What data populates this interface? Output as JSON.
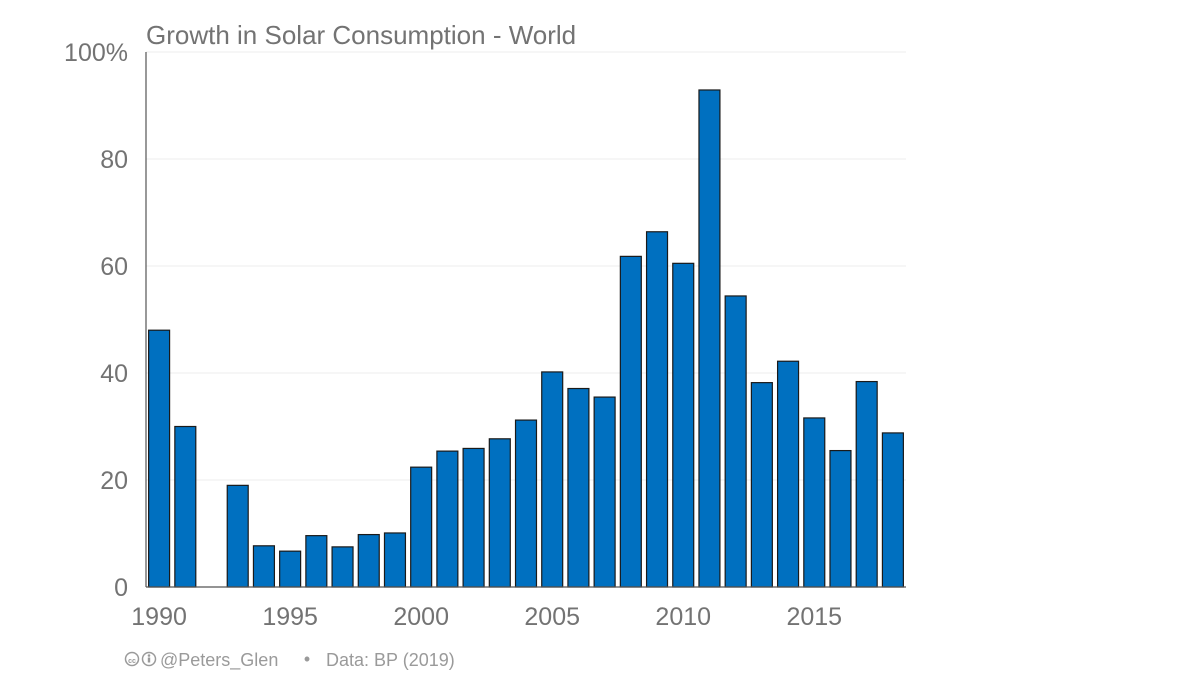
{
  "chart_data": {
    "type": "bar",
    "title": "Growth in Solar Consumption - World",
    "xlabel": "",
    "ylabel": "",
    "x": [
      1990,
      1991,
      1992,
      1993,
      1994,
      1995,
      1996,
      1997,
      1998,
      1999,
      2000,
      2001,
      2002,
      2003,
      2004,
      2005,
      2006,
      2007,
      2008,
      2009,
      2010,
      2011,
      2012,
      2013,
      2014,
      2015,
      2016,
      2017,
      2018
    ],
    "values": [
      48,
      30,
      0,
      19,
      7.7,
      6.7,
      9.6,
      7.5,
      9.8,
      10.1,
      22.4,
      25.4,
      25.9,
      27.7,
      31.2,
      40.2,
      37.1,
      35.5,
      61.8,
      66.4,
      60.5,
      92.9,
      54.4,
      38.2,
      42.2,
      31.6,
      25.5,
      38.4,
      28.8
    ],
    "ylim": [
      0,
      100
    ],
    "yticks": [
      0,
      20,
      40,
      60,
      80,
      100
    ],
    "ytick_labels": [
      "0",
      "20",
      "40",
      "60",
      "80",
      "100%"
    ],
    "xticks": [
      1990,
      1995,
      2000,
      2005,
      2010,
      2015
    ],
    "grid": true,
    "bar_color": "#0070c0",
    "bar_edge_color": "#1a1a1a"
  },
  "footer": {
    "license_icons": "cc-by-icons",
    "credit": "@Peters_Glen",
    "separator": "•",
    "source": "Data: BP (2019)"
  }
}
